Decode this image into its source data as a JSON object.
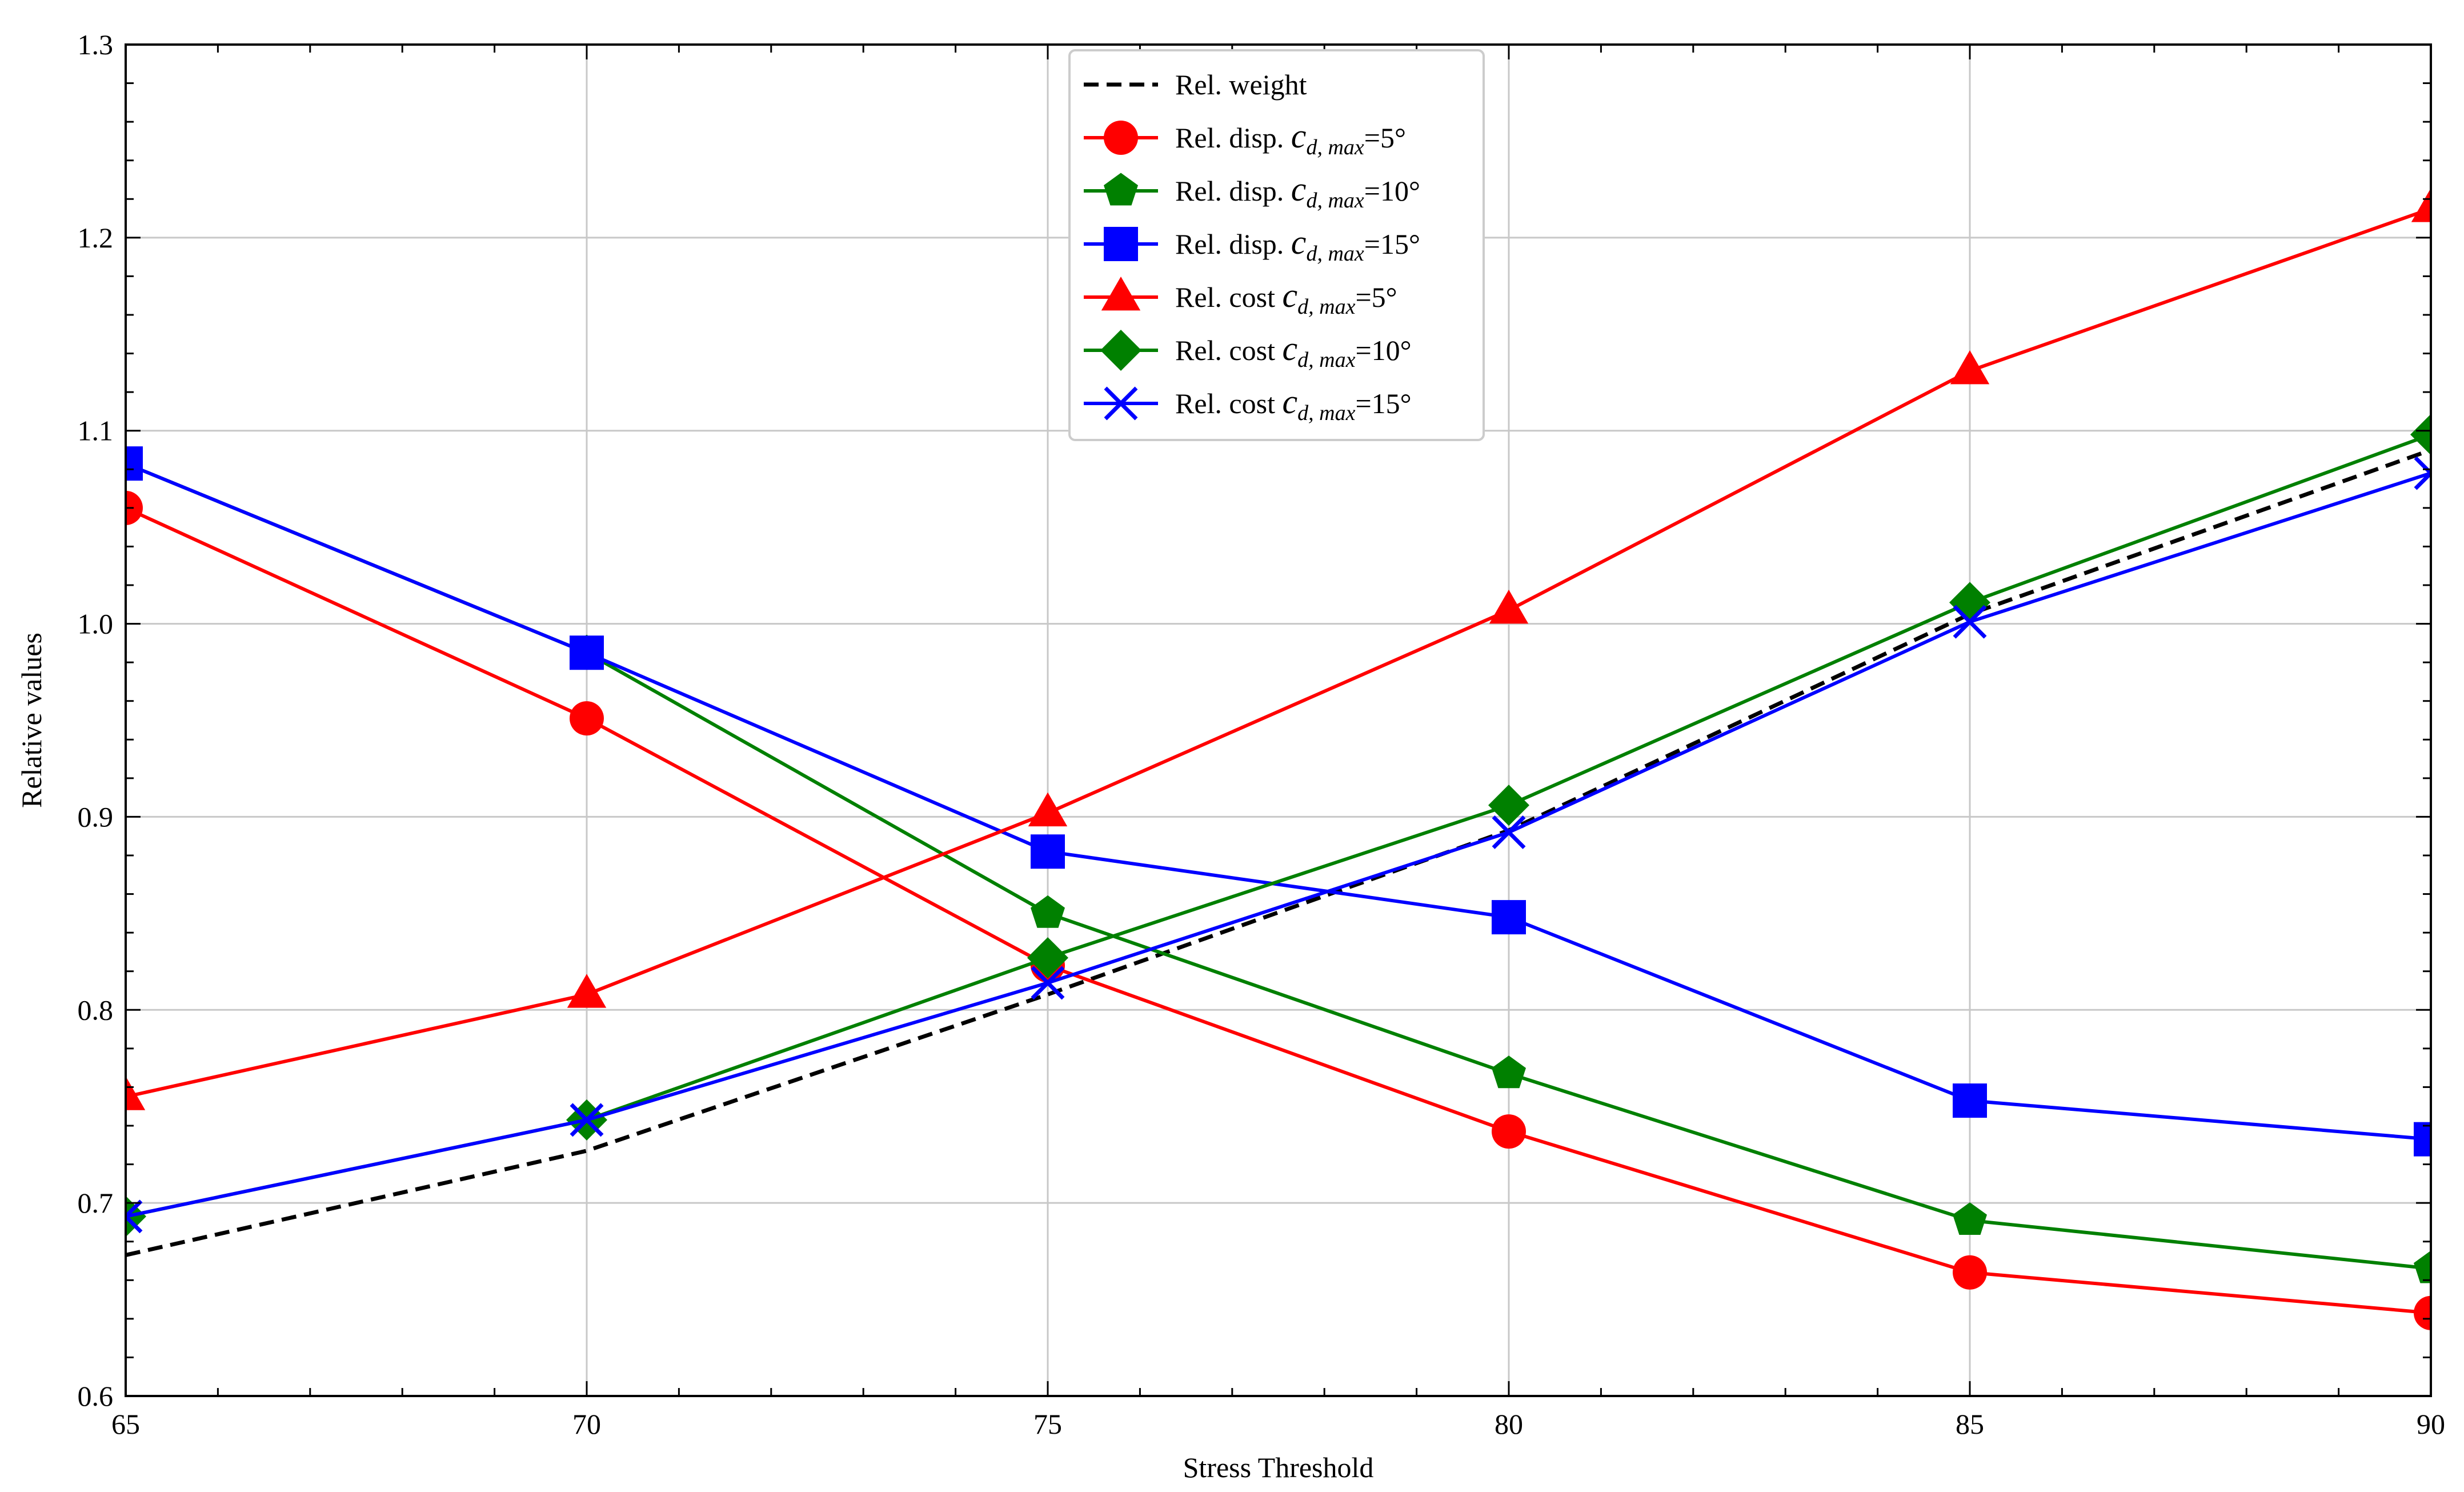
{
  "chart_data": {
    "type": "line",
    "title": "",
    "xlabel": "Stress Threshold",
    "ylabel": "Relative values",
    "xlim": [
      65,
      90
    ],
    "ylim": [
      0.6,
      1.3
    ],
    "x": [
      65,
      70,
      75,
      80,
      85,
      90
    ],
    "xticks": [
      65,
      70,
      75,
      80,
      85,
      90
    ],
    "xtick_labels": [
      "65",
      "70",
      "75",
      "80",
      "85",
      "90"
    ],
    "yticks": [
      0.6,
      0.7,
      0.8,
      0.9,
      1.0,
      1.1,
      1.2,
      1.3
    ],
    "ytick_labels": [
      "0.6",
      "0.7",
      "0.8",
      "0.9",
      "1.0",
      "1.1",
      "1.2",
      "1.3"
    ],
    "grid": true,
    "legend_position": "top-center",
    "series": [
      {
        "name": "Rel. weight",
        "label_prefix": "Rel. weight",
        "label_math": "",
        "label_suffix": "",
        "color": "#000000",
        "dash": "dashed",
        "marker": "none",
        "values": [
          0.673,
          0.727,
          0.808,
          0.893,
          1.005,
          1.09
        ]
      },
      {
        "name": "Rel. disp. c_d,max=5°",
        "label_prefix": "Rel. disp. ",
        "label_math": "c",
        "label_sub": "d, max",
        "label_suffix": "=5°",
        "color": "#ff0000",
        "dash": "solid",
        "marker": "circle",
        "values": [
          1.06,
          0.951,
          0.823,
          0.737,
          0.664,
          0.643
        ]
      },
      {
        "name": "Rel. disp. c_d,max=10°",
        "label_prefix": "Rel. disp. ",
        "label_math": "c",
        "label_sub": "d, max",
        "label_suffix": "=10°",
        "color": "#008000",
        "dash": "solid",
        "marker": "pentagon",
        "values": [
          1.083,
          0.985,
          0.85,
          0.767,
          0.691,
          0.666
        ]
      },
      {
        "name": "Rel. disp. c_d,max=15°",
        "label_prefix": "Rel. disp. ",
        "label_math": "c",
        "label_sub": "d, max",
        "label_suffix": "=15°",
        "color": "#0000ff",
        "dash": "solid",
        "marker": "square",
        "values": [
          1.083,
          0.985,
          0.882,
          0.848,
          0.753,
          0.733
        ]
      },
      {
        "name": "Rel. cost c_d,max=5°",
        "label_prefix": "Rel. cost ",
        "label_math": "c",
        "label_sub": "d, max",
        "label_suffix": "=5°",
        "color": "#ff0000",
        "dash": "solid",
        "marker": "triangle",
        "values": [
          0.755,
          0.808,
          0.902,
          1.007,
          1.131,
          1.215
        ]
      },
      {
        "name": "Rel. cost c_d,max=10°",
        "label_prefix": "Rel. cost ",
        "label_math": "c",
        "label_sub": "d, max",
        "label_suffix": "=10°",
        "color": "#008000",
        "dash": "solid",
        "marker": "diamond",
        "values": [
          0.693,
          0.743,
          0.827,
          0.906,
          1.011,
          1.098
        ]
      },
      {
        "name": "Rel. cost c_d,max=15°",
        "label_prefix": "Rel. cost ",
        "label_math": "c",
        "label_sub": "d, max",
        "label_suffix": "=15°",
        "color": "#0000ff",
        "dash": "solid",
        "marker": "x",
        "values": [
          0.693,
          0.743,
          0.814,
          0.892,
          1.001,
          1.078
        ]
      }
    ]
  }
}
